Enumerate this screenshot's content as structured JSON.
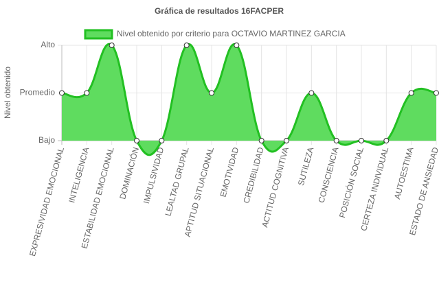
{
  "chart_data": {
    "type": "area",
    "title": "Gráfica de resultados 16FACPER",
    "y_label": "Nivel obtenido",
    "categories": [
      "EXPRESIVIDAD EMOCIONAL",
      "INTELIGENCIA",
      "ESTABILIDAD EMOCIONAL",
      "DOMINACIÓN",
      "IMPULSIVIDAD",
      "LEALTAD GRUPAL",
      "APTITUD SITUACIONAL",
      "EMOTIVIDAD",
      "CREDIBILIDAD",
      "ACTITUD COGNITIVA",
      "SUTILEZA",
      "CONSCIENCIA",
      "POSICIÓN SOCIAL",
      "CERTEZA INDIVIDUAL",
      "AUTOESTIMA",
      "ESTADO DE ANSIEDAD"
    ],
    "series": [
      {
        "name": "Nivel obtenido por criterio para OCTAVIO MARTINEZ GARCIA",
        "color": "#22c022",
        "fill": "#5fdc5f",
        "values": [
          1,
          1,
          2,
          0,
          0,
          2,
          1,
          2,
          0,
          0,
          1,
          0,
          0,
          0,
          1,
          1
        ]
      }
    ],
    "ylim": [
      0,
      2
    ],
    "yticks": [
      {
        "value": 0,
        "label": "Bajo"
      },
      {
        "value": 1,
        "label": "Promedio"
      },
      {
        "value": 2,
        "label": "Alto"
      }
    ],
    "grid": true,
    "legend": "top"
  }
}
